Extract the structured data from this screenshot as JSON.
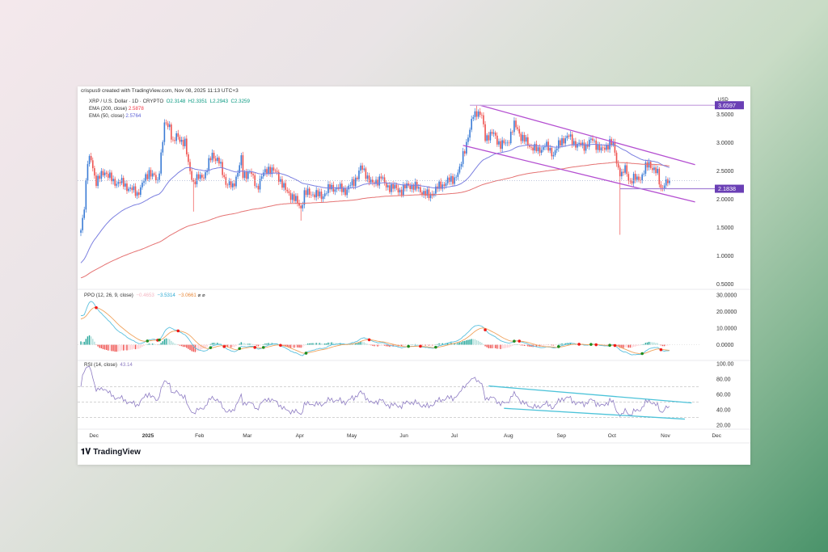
{
  "header": "crispus9 created with TradingView.com, Nov 08, 2025 11:13 UTC+3",
  "legend": {
    "symbol": "XRP / U.S. Dollar · 1D · CRYPTO",
    "o": "O2.3148",
    "h": "H2.3351",
    "l": "L2.2943",
    "c": "C2.3259",
    "ema200_label": "EMA (200, close)",
    "ema200_value": "2.5878",
    "ema50_label": "EMA (50, close)",
    "ema50_value": "2.5764"
  },
  "ppo_legend": {
    "label": "PPO (12, 26, 9, close)",
    "v1": "−0.4653",
    "v2": "−3.5314",
    "v3": "−3.0661"
  },
  "rsi_legend": {
    "label": "RSI (14, close)",
    "value": "43.14"
  },
  "currency": "USD",
  "logo": "TradingView",
  "colors": {
    "up": "#3a7bd5",
    "down": "#ef5350",
    "ema50": "#7b7fe0",
    "ema200": "#e57373",
    "trend": "#b44fd1",
    "rsi_trend": "#4cc3d9",
    "rsi": "#8e7cc3",
    "ppo": "#5bc0de",
    "signal": "#f0a35e",
    "label_bg": "#6a3fb5"
  },
  "chart_data": {
    "type": "candlestick",
    "title": "XRP / U.S. Dollar · 1D · CRYPTO",
    "start_date": "2024-11-28",
    "days": 345,
    "close_waypoints": [
      [
        0,
        1.45
      ],
      [
        2,
        1.9
      ],
      [
        4,
        2.65
      ],
      [
        6,
        2.7
      ],
      [
        9,
        2.3
      ],
      [
        14,
        2.5
      ],
      [
        19,
        2.3
      ],
      [
        23,
        2.3
      ],
      [
        28,
        2.2
      ],
      [
        33,
        2.1
      ],
      [
        36,
        2.25
      ],
      [
        40,
        2.5
      ],
      [
        45,
        2.3
      ],
      [
        47,
        2.8
      ],
      [
        49,
        3.3
      ],
      [
        52,
        3.3
      ],
      [
        54,
        3.0
      ],
      [
        56,
        3.1
      ],
      [
        61,
        3.0
      ],
      [
        63,
        2.6
      ],
      [
        66,
        2.3
      ],
      [
        68,
        2.35
      ],
      [
        73,
        2.45
      ],
      [
        77,
        2.8
      ],
      [
        81,
        2.65
      ],
      [
        85,
        2.3
      ],
      [
        89,
        2.2
      ],
      [
        94,
        2.7
      ],
      [
        95,
        2.4
      ],
      [
        99,
        2.5
      ],
      [
        103,
        2.2
      ],
      [
        106,
        2.4
      ],
      [
        110,
        2.55
      ],
      [
        115,
        2.45
      ],
      [
        120,
        2.15
      ],
      [
        124,
        2.05
      ],
      [
        129,
        1.85
      ],
      [
        131,
        2.1
      ],
      [
        136,
        2.1
      ],
      [
        141,
        2.05
      ],
      [
        146,
        2.2
      ],
      [
        150,
        2.2
      ],
      [
        155,
        2.15
      ],
      [
        160,
        2.3
      ],
      [
        164,
        2.55
      ],
      [
        167,
        2.45
      ],
      [
        171,
        2.25
      ],
      [
        176,
        2.4
      ],
      [
        178,
        2.25
      ],
      [
        183,
        2.2
      ],
      [
        188,
        2.15
      ],
      [
        192,
        2.25
      ],
      [
        197,
        2.2
      ],
      [
        204,
        2.05
      ],
      [
        209,
        2.2
      ],
      [
        214,
        2.3
      ],
      [
        218,
        2.35
      ],
      [
        222,
        2.5
      ],
      [
        224,
        2.8
      ],
      [
        228,
        3.2
      ],
      [
        230,
        3.5
      ],
      [
        232,
        3.55
      ],
      [
        235,
        3.45
      ],
      [
        237,
        3.1
      ],
      [
        242,
        3.15
      ],
      [
        246,
        2.95
      ],
      [
        250,
        3.0
      ],
      [
        254,
        3.3
      ],
      [
        256,
        3.25
      ],
      [
        258,
        3.1
      ],
      [
        263,
        2.95
      ],
      [
        268,
        2.85
      ],
      [
        272,
        2.95
      ],
      [
        277,
        2.8
      ],
      [
        282,
        3.05
      ],
      [
        286,
        3.1
      ],
      [
        291,
        2.95
      ],
      [
        296,
        2.95
      ],
      [
        300,
        3.05
      ],
      [
        305,
        2.85
      ],
      [
        310,
        3.0
      ],
      [
        312,
        2.95
      ],
      [
        315,
        2.55
      ],
      [
        317,
        2.4
      ],
      [
        319,
        2.55
      ],
      [
        322,
        2.3
      ],
      [
        324,
        2.35
      ],
      [
        329,
        2.4
      ],
      [
        331,
        2.55
      ],
      [
        333,
        2.65
      ],
      [
        336,
        2.5
      ],
      [
        338,
        2.45
      ],
      [
        340,
        2.2
      ],
      [
        345,
        2.3259
      ]
    ],
    "wick_lows": [
      [
        66,
        1.78
      ],
      [
        129,
        1.62
      ],
      [
        316,
        1.37
      ]
    ],
    "all_time_high": [
      232,
      3.6597
    ],
    "price_axis": {
      "ticks": [
        "3.5000",
        "3.0000",
        "2.5000",
        "2.0000",
        "1.5000",
        "1.0000",
        "0.5000"
      ],
      "range": [
        0.42,
        3.82
      ]
    },
    "price_labels": [
      "3.6597",
      "2.1838"
    ],
    "current_price": 2.3259,
    "trendlines": {
      "upper_channel": [
        [
          234,
          3.66
        ],
        [
          360,
          2.61
        ]
      ],
      "lower_channel": [
        [
          224,
          2.95
        ],
        [
          360,
          1.95
        ]
      ],
      "ath_line": [
        [
          228,
          3.6597
        ],
        [
          375,
          3.6597
        ]
      ],
      "support_line": [
        [
          316,
          2.1838
        ],
        [
          375,
          2.1838
        ]
      ],
      "rsi_upper": [
        [
          239,
          71
        ],
        [
          358,
          49
        ]
      ],
      "rsi_lower": [
        [
          248,
          42
        ],
        [
          354,
          28
        ]
      ]
    },
    "ppo_axis": {
      "ticks": [
        "30.0000",
        "20.0000",
        "10.0000",
        "0.0000"
      ],
      "range": [
        -9,
        31
      ]
    },
    "rsi_axis": {
      "ticks": [
        "100.00",
        "80.00",
        "60.00",
        "40.00",
        "20.00"
      ],
      "range": [
        16,
        102
      ],
      "levels": [
        70,
        50,
        30
      ]
    },
    "x_ticks": [
      {
        "label": "Dec",
        "date": "2024-12-01"
      },
      {
        "label": "2025",
        "date": "2025-01-01"
      },
      {
        "label": "Feb",
        "date": "2025-02-01"
      },
      {
        "label": "Mar",
        "date": "2025-03-01"
      },
      {
        "label": "Apr",
        "date": "2025-04-01"
      },
      {
        "label": "May",
        "date": "2025-05-01"
      },
      {
        "label": "Jun",
        "date": "2025-06-01"
      },
      {
        "label": "Jul",
        "date": "2025-07-01"
      },
      {
        "label": "Aug",
        "date": "2025-08-01"
      },
      {
        "label": "Sep",
        "date": "2025-09-01"
      },
      {
        "label": "Oct",
        "date": "2025-10-01"
      },
      {
        "label": "Nov",
        "date": "2025-11-01"
      },
      {
        "label": "Dec",
        "date": "2025-12-01"
      }
    ]
  }
}
